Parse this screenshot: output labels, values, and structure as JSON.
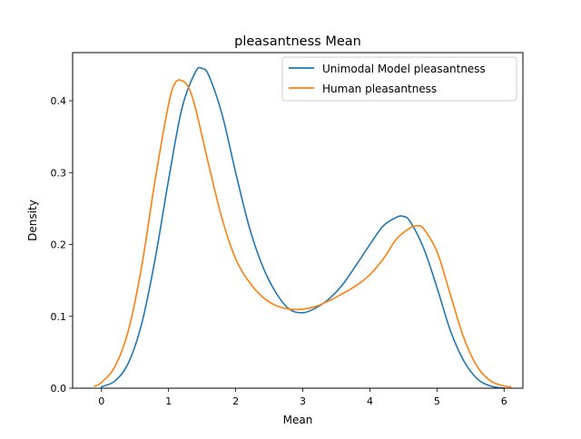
{
  "chart_data": {
    "type": "line",
    "title": "pleasantness Mean",
    "xlabel": "Mean",
    "ylabel": "Density",
    "xlim": [
      -0.43,
      6.28
    ],
    "ylim": [
      0,
      0.467
    ],
    "xticks": [
      0,
      1,
      2,
      3,
      4,
      5,
      6
    ],
    "yticks": [
      0.0,
      0.1,
      0.2,
      0.3,
      0.4
    ],
    "ytick_labels": [
      "0.0",
      "0.1",
      "0.2",
      "0.3",
      "0.4"
    ],
    "grid": false,
    "legend_position": "top-right",
    "series": [
      {
        "name": "Unimodal Model pleasantness",
        "color": "#1f77b4",
        "x": [
          0.0,
          0.2,
          0.4,
          0.6,
          0.8,
          1.0,
          1.2,
          1.4,
          1.5,
          1.6,
          1.8,
          2.0,
          2.2,
          2.4,
          2.6,
          2.8,
          3.0,
          3.2,
          3.4,
          3.6,
          3.8,
          4.0,
          4.2,
          4.4,
          4.5,
          4.6,
          4.8,
          5.0,
          5.2,
          5.4,
          5.6,
          5.8,
          6.0
        ],
        "y": [
          0.002,
          0.01,
          0.035,
          0.09,
          0.18,
          0.29,
          0.39,
          0.44,
          0.445,
          0.435,
          0.38,
          0.3,
          0.225,
          0.17,
          0.133,
          0.11,
          0.105,
          0.112,
          0.125,
          0.145,
          0.172,
          0.2,
          0.226,
          0.238,
          0.239,
          0.232,
          0.195,
          0.14,
          0.08,
          0.038,
          0.013,
          0.003,
          0.0
        ]
      },
      {
        "name": "Human pleasantness",
        "color": "#ff7f0e",
        "x": [
          -0.1,
          0.0,
          0.2,
          0.4,
          0.6,
          0.8,
          1.0,
          1.1,
          1.2,
          1.3,
          1.4,
          1.6,
          1.8,
          2.0,
          2.2,
          2.4,
          2.6,
          2.8,
          3.0,
          3.2,
          3.4,
          3.6,
          3.8,
          4.0,
          4.2,
          4.4,
          4.6,
          4.7,
          4.8,
          5.0,
          5.2,
          5.4,
          5.6,
          5.8,
          6.0,
          6.1
        ],
        "y": [
          0.003,
          0.008,
          0.03,
          0.08,
          0.17,
          0.29,
          0.395,
          0.425,
          0.428,
          0.418,
          0.39,
          0.31,
          0.235,
          0.18,
          0.148,
          0.127,
          0.115,
          0.11,
          0.11,
          0.114,
          0.122,
          0.132,
          0.143,
          0.158,
          0.18,
          0.208,
          0.223,
          0.226,
          0.222,
          0.19,
          0.13,
          0.07,
          0.03,
          0.01,
          0.003,
          0.002
        ]
      }
    ]
  }
}
